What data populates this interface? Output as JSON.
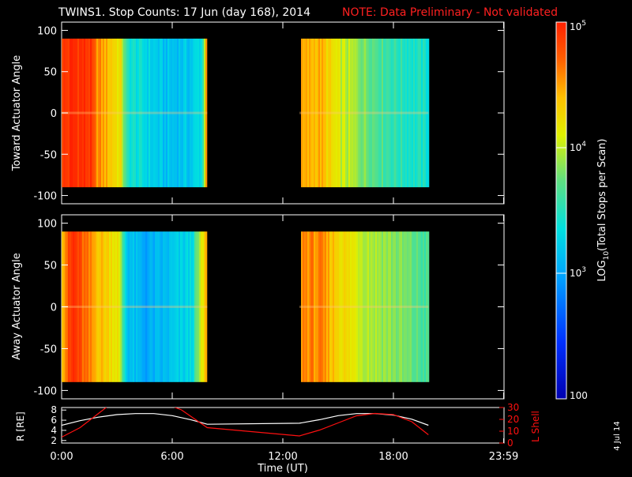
{
  "title": "TWINS1. Stop Counts: 17 Jun (day 168), 2014",
  "note": "NOTE: Data Preliminary - Not validated",
  "date_stamp": "4 Jul 14",
  "colors": {
    "background": "#000000",
    "axes": "#ffffff",
    "note": "#ff2020",
    "lshell": "#ff1010",
    "radius": "#ffffff"
  },
  "chart_data": [
    {
      "type": "heatmap",
      "panel": "top",
      "ylabel": "Toward Actuator Angle",
      "ylim": [
        -110,
        110
      ],
      "yticks": [
        100,
        50,
        0,
        -50,
        -100
      ],
      "x_unit": "hours UT",
      "xlim": [
        0,
        24
      ],
      "y_extent": [
        -90,
        90
      ],
      "data_blocks": [
        {
          "start_hour": 0.0,
          "end_hour": 7.9
        },
        {
          "start_hour": 12.9,
          "end_hour": 19.9
        }
      ],
      "log10_profile": [
        {
          "hour": 0.0,
          "log10": 4.85
        },
        {
          "hour": 0.6,
          "log10": 4.95
        },
        {
          "hour": 1.5,
          "log10": 4.9
        },
        {
          "hour": 1.8,
          "log10": 4.6
        },
        {
          "hour": 2.5,
          "log10": 4.4
        },
        {
          "hour": 3.2,
          "log10": 4.15
        },
        {
          "hour": 3.5,
          "log10": 3.45
        },
        {
          "hour": 4.6,
          "log10": 3.3
        },
        {
          "hour": 5.5,
          "log10": 3.15
        },
        {
          "hour": 7.0,
          "log10": 3.2
        },
        {
          "hour": 7.6,
          "log10": 3.4
        },
        {
          "hour": 7.8,
          "log10": 4.6
        },
        {
          "hour": 12.9,
          "log10": 4.4
        },
        {
          "hour": 14.0,
          "log10": 4.45
        },
        {
          "hour": 15.0,
          "log10": 4.05
        },
        {
          "hour": 16.5,
          "log10": 3.8
        },
        {
          "hour": 18.0,
          "log10": 3.55
        },
        {
          "hour": 19.9,
          "log10": 3.4
        }
      ]
    },
    {
      "type": "heatmap",
      "panel": "middle",
      "ylabel": "Away Actuator Angle",
      "ylim": [
        -110,
        110
      ],
      "yticks": [
        100,
        50,
        0,
        -50,
        -100
      ],
      "x_unit": "hours UT",
      "xlim": [
        0,
        24
      ],
      "y_extent": [
        -90,
        90
      ],
      "data_blocks": [
        {
          "start_hour": 0.0,
          "end_hour": 7.9
        },
        {
          "start_hour": 12.9,
          "end_hour": 19.9
        }
      ],
      "log10_profile": [
        {
          "hour": 0.0,
          "log10": 4.5
        },
        {
          "hour": 0.6,
          "log10": 4.95
        },
        {
          "hour": 1.3,
          "log10": 4.6
        },
        {
          "hour": 2.0,
          "log10": 4.4
        },
        {
          "hour": 3.0,
          "log10": 4.2
        },
        {
          "hour": 3.5,
          "log10": 3.2
        },
        {
          "hour": 4.5,
          "log10": 3.0
        },
        {
          "hour": 5.5,
          "log10": 3.1
        },
        {
          "hour": 7.0,
          "log10": 3.3
        },
        {
          "hour": 7.8,
          "log10": 4.4
        },
        {
          "hour": 12.9,
          "log10": 4.6
        },
        {
          "hour": 14.0,
          "log10": 4.55
        },
        {
          "hour": 15.0,
          "log10": 4.3
        },
        {
          "hour": 16.5,
          "log10": 4.0
        },
        {
          "hour": 18.0,
          "log10": 3.85
        },
        {
          "hour": 19.9,
          "log10": 3.6
        }
      ]
    },
    {
      "type": "line",
      "panel": "bottom",
      "xlabel": "Time (UT)",
      "xticks": [
        "0:00",
        "6:00",
        "12:00",
        "18:00",
        "23:59"
      ],
      "xtick_hours": [
        0,
        6,
        12,
        18,
        23.98
      ],
      "xlim": [
        0,
        24
      ],
      "left_axis": {
        "label": "R [RE]",
        "ylim": [
          1.5,
          8.5
        ],
        "yticks": [
          2,
          4,
          6,
          8
        ]
      },
      "right_axis": {
        "label": "L Shell",
        "ylim": [
          0,
          30
        ],
        "yticks": [
          0,
          10,
          20,
          30
        ]
      },
      "series": [
        {
          "name": "R [RE]",
          "axis": "left",
          "x": [
            0.0,
            1.0,
            2.0,
            3.0,
            4.0,
            5.0,
            6.0,
            7.0,
            7.9,
            12.9,
            14.0,
            15.0,
            16.0,
            17.0,
            18.0,
            19.0,
            19.9
          ],
          "y": [
            5.0,
            5.9,
            6.6,
            7.1,
            7.3,
            7.3,
            6.9,
            6.1,
            5.2,
            5.4,
            6.1,
            6.9,
            7.3,
            7.3,
            7.0,
            6.2,
            5.0
          ]
        },
        {
          "name": "L Shell",
          "axis": "right",
          "x": [
            0.0,
            1.0,
            2.0,
            2.5,
            6.0,
            6.5,
            7.9,
            12.9,
            14.0,
            15.0,
            16.0,
            17.0,
            18.0,
            19.0,
            19.9
          ],
          "y": [
            5.0,
            13.0,
            25.0,
            31.0,
            31.0,
            28.0,
            13.0,
            6.0,
            11.0,
            17.0,
            23.0,
            25.0,
            24.0,
            18.0,
            7.0
          ]
        }
      ]
    }
  ],
  "colorbar": {
    "label": "LOG",
    "label_sub": "10",
    "label_rest": "(Total Stops per Scan)",
    "range_log10": [
      2,
      5
    ],
    "ticks": [
      {
        "value": 5,
        "base": "10",
        "exp": "5"
      },
      {
        "value": 4,
        "base": "10",
        "exp": "4"
      },
      {
        "value": 3,
        "base": "10",
        "exp": "3"
      },
      {
        "value": 2,
        "base": "100",
        "exp": ""
      }
    ]
  }
}
